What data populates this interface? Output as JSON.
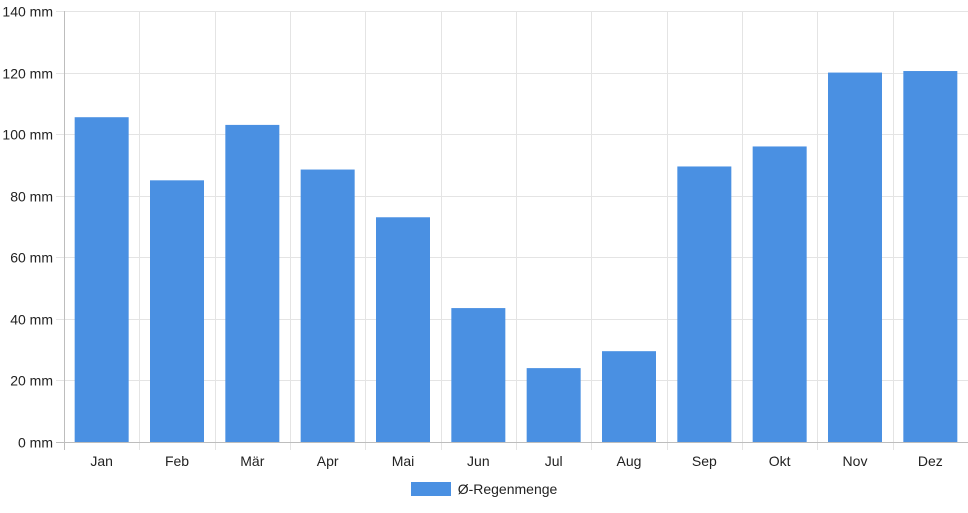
{
  "chart_data": {
    "type": "bar",
    "categories": [
      "Jan",
      "Feb",
      "Mär",
      "Apr",
      "Mai",
      "Jun",
      "Jul",
      "Aug",
      "Sep",
      "Okt",
      "Nov",
      "Dez"
    ],
    "series": [
      {
        "name": "Ø-Regenmenge",
        "values": [
          105.5,
          85,
          103,
          88.5,
          73,
          43.5,
          24,
          29.5,
          89.5,
          96,
          120,
          120.5
        ]
      }
    ],
    "ylim": [
      0,
      140
    ],
    "y_ticks": [
      0,
      20,
      40,
      60,
      80,
      100,
      120,
      140
    ],
    "y_unit": "mm",
    "grid": true,
    "legend_position": "bottom-center",
    "title": "",
    "xlabel": "",
    "ylabel": ""
  },
  "colors": {
    "bar": "#4a90e2",
    "grid": "#e4e4e4",
    "axis": "#bdbdbd"
  }
}
